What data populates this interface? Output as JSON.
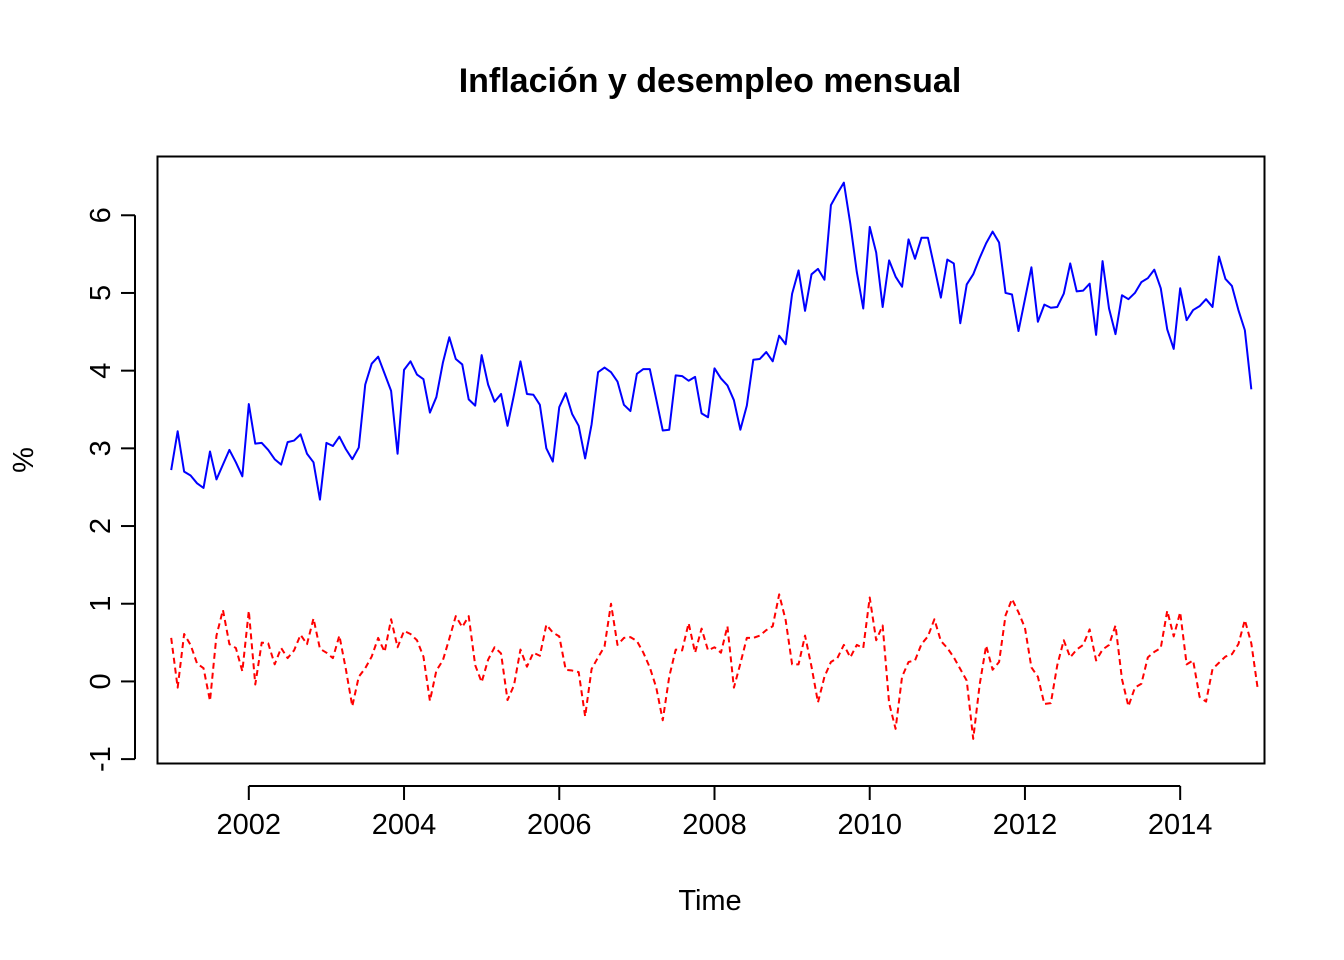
{
  "chart_data": {
    "type": "line",
    "title": "Inflación y desempleo mensual",
    "xlabel": "Time",
    "ylabel": "%",
    "xlim": [
      2000.83,
      2015.08
    ],
    "ylim": [
      -1.05,
      6.75
    ],
    "x_ticks": [
      2002,
      2004,
      2006,
      2008,
      2010,
      2012,
      2014
    ],
    "x_tick_labels": [
      "2002",
      "2004",
      "2006",
      "2008",
      "2010",
      "2012",
      "2014"
    ],
    "y_ticks": [
      -1,
      0,
      1,
      2,
      3,
      4,
      5,
      6
    ],
    "y_tick_labels": [
      "-1",
      "0",
      "1",
      "2",
      "3",
      "4",
      "5",
      "6"
    ],
    "grid": false,
    "legend": "none",
    "x_start": 2001,
    "x_step": 0.08333333,
    "series": [
      {
        "color": "#0000FF",
        "line_style": "solid",
        "values": [
          2.72,
          3.22,
          2.7,
          2.65,
          2.55,
          2.49,
          2.96,
          2.6,
          2.79,
          2.98,
          2.82,
          2.64,
          3.57,
          3.06,
          3.07,
          2.98,
          2.86,
          2.79,
          3.08,
          3.1,
          3.18,
          2.93,
          2.82,
          2.34,
          3.07,
          3.03,
          3.15,
          2.99,
          2.86,
          3.01,
          3.82,
          4.09,
          4.18,
          3.96,
          3.74,
          2.93,
          4.01,
          4.12,
          3.95,
          3.89,
          3.46,
          3.66,
          4.1,
          4.43,
          4.15,
          4.08,
          3.63,
          3.55,
          4.2,
          3.82,
          3.6,
          3.7,
          3.29,
          3.69,
          4.12,
          3.7,
          3.69,
          3.56,
          3.0,
          2.83,
          3.53,
          3.71,
          3.44,
          3.29,
          2.87,
          3.31,
          3.98,
          4.04,
          3.98,
          3.86,
          3.56,
          3.48,
          3.96,
          4.02,
          4.02,
          3.63,
          3.23,
          3.24,
          3.94,
          3.93,
          3.87,
          3.92,
          3.45,
          3.4,
          4.03,
          3.9,
          3.81,
          3.62,
          3.24,
          3.55,
          4.14,
          4.15,
          4.24,
          4.12,
          4.45,
          4.34,
          4.99,
          5.29,
          4.77,
          5.24,
          5.31,
          5.17,
          6.13,
          6.28,
          6.42,
          5.89,
          5.27,
          4.8,
          5.85,
          5.52,
          4.82,
          5.42,
          5.21,
          5.08,
          5.69,
          5.44,
          5.71,
          5.71,
          5.33,
          4.94,
          5.43,
          5.38,
          4.61,
          5.11,
          5.24,
          5.45,
          5.64,
          5.79,
          5.65,
          5.0,
          4.98,
          4.51,
          4.92,
          5.33,
          4.63,
          4.85,
          4.81,
          4.82,
          4.99,
          5.38,
          5.02,
          5.03,
          5.12,
          4.46,
          5.41,
          4.8,
          4.47,
          4.97,
          4.92,
          5.0,
          5.14,
          5.19,
          5.3,
          5.06,
          4.53,
          4.28,
          5.06,
          4.65,
          4.78,
          4.83,
          4.92,
          4.82,
          5.47,
          5.18,
          5.09,
          4.78,
          4.52,
          3.76
        ]
      },
      {
        "color": "#FF0000",
        "line_style": "dashed",
        "values": [
          0.56,
          -0.08,
          0.61,
          0.47,
          0.23,
          0.17,
          -0.25,
          0.59,
          0.92,
          0.48,
          0.43,
          0.13,
          0.91,
          -0.04,
          0.5,
          0.49,
          0.22,
          0.43,
          0.3,
          0.4,
          0.6,
          0.48,
          0.81,
          0.42,
          0.37,
          0.3,
          0.59,
          0.16,
          -0.32,
          0.06,
          0.17,
          0.32,
          0.56,
          0.38,
          0.8,
          0.44,
          0.65,
          0.61,
          0.53,
          0.32,
          -0.25,
          0.14,
          0.27,
          0.55,
          0.84,
          0.7,
          0.84,
          0.21,
          -0.01,
          0.28,
          0.44,
          0.36,
          -0.24,
          -0.05,
          0.41,
          0.19,
          0.37,
          0.33,
          0.73,
          0.63,
          0.58,
          0.15,
          0.14,
          0.12,
          -0.45,
          0.16,
          0.31,
          0.45,
          1.0,
          0.47,
          0.56,
          0.57,
          0.52,
          0.37,
          0.18,
          -0.08,
          -0.5,
          0.06,
          0.41,
          0.4,
          0.75,
          0.37,
          0.68,
          0.4,
          0.44,
          0.37,
          0.71,
          -0.08,
          0.23,
          0.56,
          0.56,
          0.59,
          0.66,
          0.71,
          1.12,
          0.79,
          0.22,
          0.22,
          0.59,
          0.19,
          -0.27,
          0.06,
          0.25,
          0.3,
          0.47,
          0.31,
          0.47,
          0.43,
          1.08,
          0.53,
          0.72,
          -0.28,
          -0.61,
          0.06,
          0.25,
          0.27,
          0.48,
          0.58,
          0.8,
          0.52,
          0.43,
          0.31,
          0.16,
          0.01,
          -0.74,
          -0.04,
          0.46,
          0.15,
          0.25,
          0.85,
          1.06,
          0.89,
          0.69,
          0.18,
          0.06,
          -0.29,
          -0.28,
          0.21,
          0.53,
          0.31,
          0.41,
          0.47,
          0.67,
          0.27,
          0.41,
          0.47,
          0.72,
          0.03,
          -0.32,
          -0.08,
          -0.03,
          0.31,
          0.38,
          0.43,
          0.91,
          0.58,
          0.89,
          0.22,
          0.27,
          -0.2,
          -0.26,
          0.16,
          0.24,
          0.32,
          0.35,
          0.48,
          0.79,
          0.49,
          -0.1
        ]
      }
    ]
  }
}
